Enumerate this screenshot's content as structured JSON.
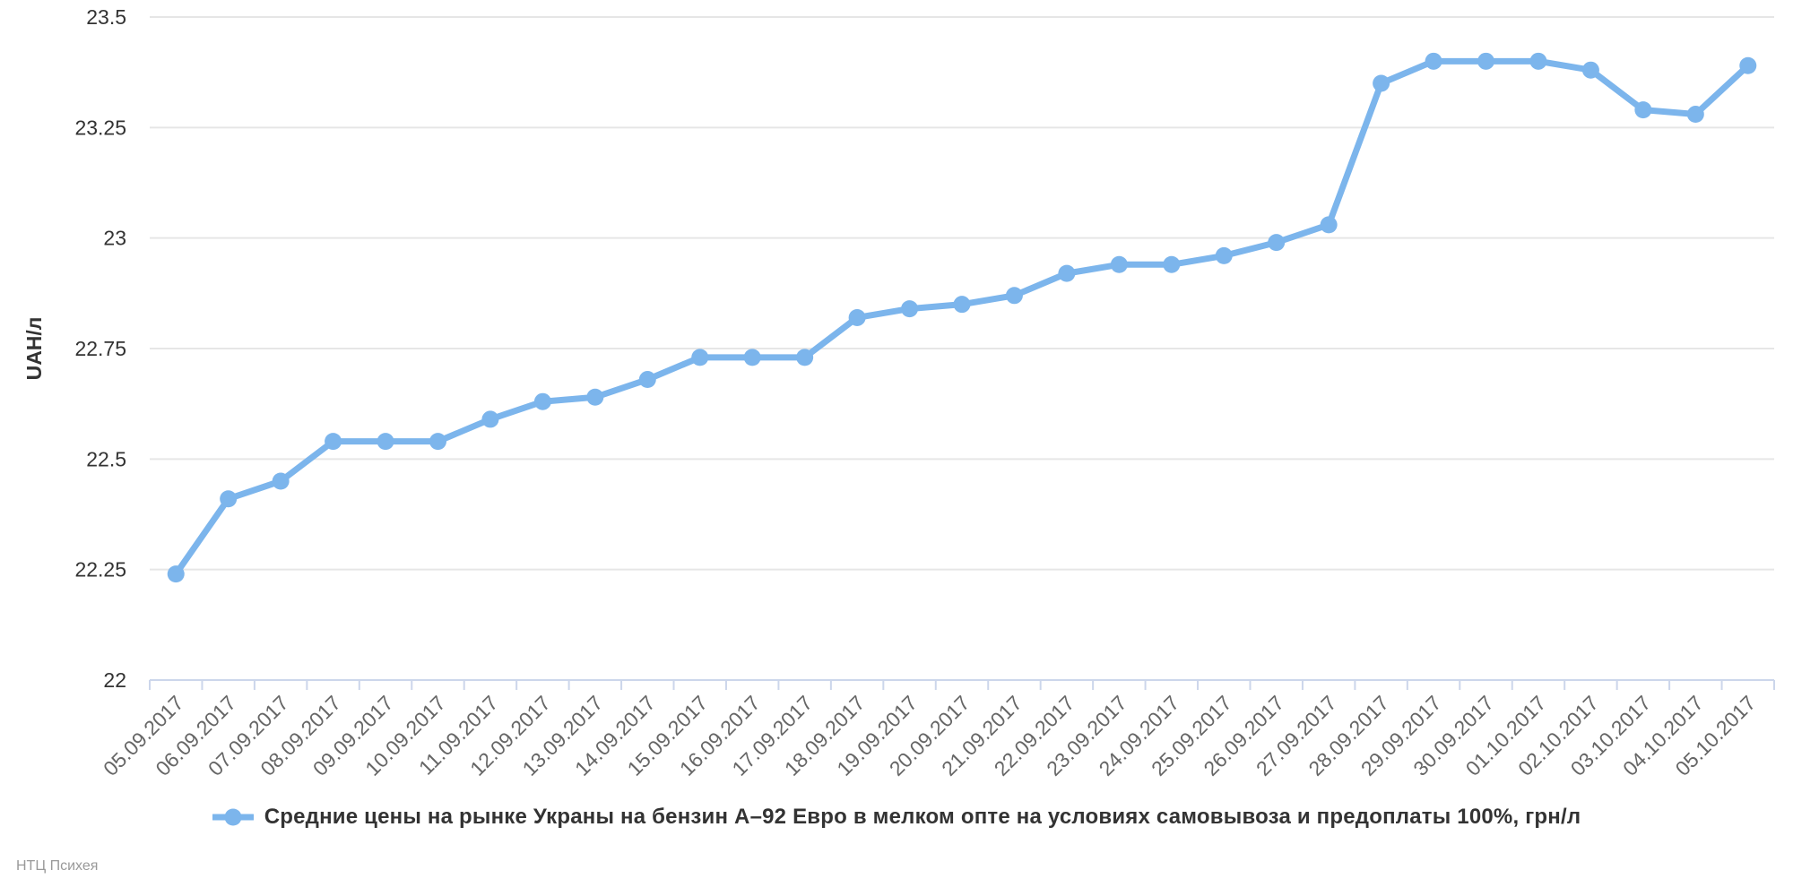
{
  "chart_data": {
    "type": "line",
    "title": "",
    "categories": [
      "05.09.2017",
      "06.09.2017",
      "07.09.2017",
      "08.09.2017",
      "09.09.2017",
      "10.09.2017",
      "11.09.2017",
      "12.09.2017",
      "13.09.2017",
      "14.09.2017",
      "15.09.2017",
      "16.09.2017",
      "17.09.2017",
      "18.09.2017",
      "19.09.2017",
      "20.09.2017",
      "21.09.2017",
      "22.09.2017",
      "23.09.2017",
      "24.09.2017",
      "25.09.2017",
      "26.09.2017",
      "27.09.2017",
      "28.09.2017",
      "29.09.2017",
      "30.09.2017",
      "01.10.2017",
      "02.10.2017",
      "03.10.2017",
      "04.10.2017",
      "05.10.2017"
    ],
    "series": [
      {
        "name": "Средние цены на рынке Украны на бензин А–92 Евро в мелком опте на условиях самовывоза и предоплаты 100%, грн/л",
        "values": [
          22.24,
          22.41,
          22.45,
          22.54,
          22.54,
          22.54,
          22.59,
          22.63,
          22.64,
          22.68,
          22.73,
          22.73,
          22.73,
          22.82,
          22.84,
          22.85,
          22.87,
          22.92,
          22.94,
          22.94,
          22.96,
          22.99,
          23.03,
          23.35,
          23.4,
          23.4,
          23.4,
          23.38,
          23.29,
          23.28,
          23.39
        ]
      }
    ],
    "xlabel": "",
    "ylabel": "UAH/л",
    "ylim": [
      22,
      23.5
    ],
    "ytick_labels": [
      "22",
      "22.25",
      "22.5",
      "22.75",
      "23",
      "23.25",
      "23.5"
    ],
    "grid": true,
    "legend_position": "bottom"
  },
  "legend": {
    "label": "Средние цены на рынке Украны на бензин А–92 Евро в мелком опте на условиях самовывоза и предоплаты 100%, грн/л"
  },
  "footer": {
    "credit": "НТЦ Психея"
  },
  "colors": {
    "series": "#7cb5ec",
    "grid": "#e6e6e6",
    "axis_line": "#ccd6eb",
    "x_label": "#666666",
    "y_label": "#333333",
    "y_title": "#333333",
    "legend_text": "#333333",
    "credit": "#999999",
    "background": "#ffffff"
  }
}
